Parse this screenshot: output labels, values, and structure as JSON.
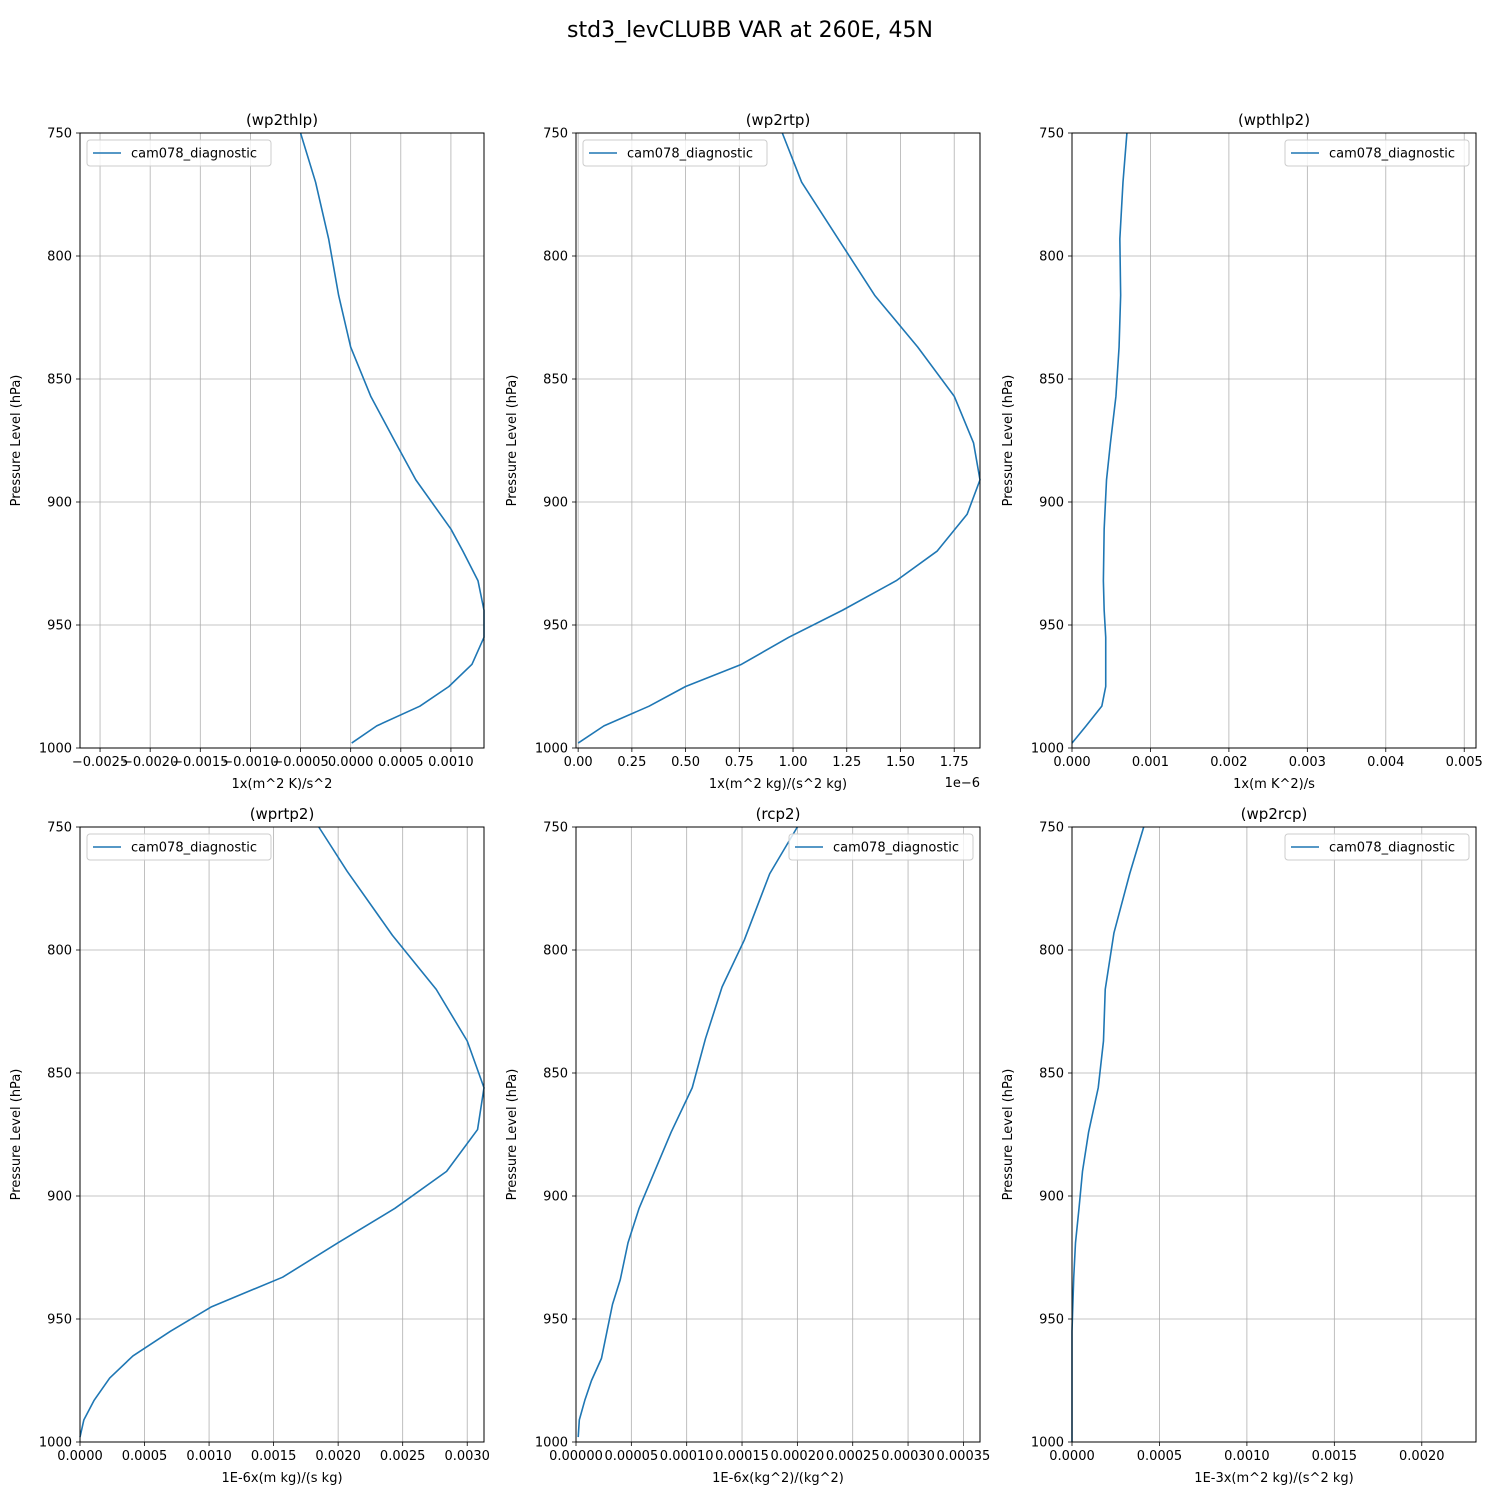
{
  "figure": {
    "title": "std3_levCLUBB VAR at 260E, 45N"
  },
  "chart_data": [
    {
      "type": "line",
      "title": "(wp2thlp)",
      "xlabel": "1x(m^2 K)/s^2",
      "ylabel": "Pressure Level (hPa)",
      "x_offset_text": "",
      "xlim": [
        -0.0027,
        0.00133
      ],
      "ylim": [
        1000,
        750
      ],
      "xticks": [
        -0.0025,
        -0.002,
        -0.0015,
        -0.001,
        -0.0005,
        0.0,
        0.0005,
        0.001
      ],
      "xtick_labels": [
        "−0.0025",
        "−0.0020",
        "−0.0015",
        "−0.0010",
        "−0.0005",
        "0.0000",
        "0.0005",
        "0.0010"
      ],
      "yticks": [
        750,
        800,
        850,
        900,
        950,
        1000
      ],
      "grid": true,
      "legend_loc": "upper left",
      "series": [
        {
          "name": "cam078_diagnostic",
          "color": "#1f77b4",
          "x": [
            -0.0005,
            -0.00035,
            -0.00022,
            -0.00012,
            0.0,
            0.0002,
            0.00045,
            0.00065,
            0.001,
            0.00112,
            0.00127,
            0.00133,
            0.00133,
            0.00121,
            0.00098,
            0.00069,
            0.00026,
            1e-05
          ],
          "y": [
            750,
            770,
            793,
            816,
            837,
            857,
            876,
            891,
            911,
            920,
            932,
            944,
            955,
            966,
            975,
            983,
            991,
            998
          ]
        }
      ]
    },
    {
      "type": "line",
      "title": "(wp2rtp)",
      "xlabel": "1x(m^2 kg)/(s^2 kg)",
      "ylabel": "Pressure Level (hPa)",
      "x_offset_text": "1e−6",
      "xlim": [
        -0.01,
        1.87
      ],
      "ylim": [
        1000,
        750
      ],
      "xticks": [
        0.0,
        0.25,
        0.5,
        0.75,
        1.0,
        1.25,
        1.5,
        1.75
      ],
      "xtick_labels": [
        "0.00",
        "0.25",
        "0.50",
        "0.75",
        "1.00",
        "1.25",
        "1.50",
        "1.75"
      ],
      "yticks": [
        750,
        800,
        850,
        900,
        950,
        1000
      ],
      "grid": true,
      "legend_loc": "upper left",
      "series": [
        {
          "name": "cam078_diagnostic",
          "color": "#1f77b4",
          "x": [
            0.95,
            1.04,
            1.21,
            1.38,
            1.58,
            1.75,
            1.84,
            1.87,
            1.81,
            1.67,
            1.48,
            1.23,
            0.98,
            0.76,
            0.5,
            0.33,
            0.12,
            0.0
          ],
          "y": [
            750,
            770,
            793,
            816,
            837,
            857,
            876,
            891,
            905,
            920,
            932,
            944,
            955,
            966,
            975,
            983,
            991,
            998
          ]
        }
      ]
    },
    {
      "type": "line",
      "title": "(wpthlp2)",
      "xlabel": "1x(m K^2)/s",
      "ylabel": "Pressure Level (hPa)",
      "x_offset_text": "",
      "xlim": [
        0.0,
        0.00515
      ],
      "ylim": [
        1000,
        750
      ],
      "xticks": [
        0.0,
        0.001,
        0.002,
        0.003,
        0.004,
        0.005
      ],
      "xtick_labels": [
        "0.000",
        "0.001",
        "0.002",
        "0.003",
        "0.004",
        "0.005"
      ],
      "yticks": [
        750,
        800,
        850,
        900,
        950,
        1000
      ],
      "grid": true,
      "legend_loc": "upper right",
      "series": [
        {
          "name": "cam078_diagnostic",
          "color": "#1f77b4",
          "x": [
            0.0007,
            0.00065,
            0.00061,
            0.00062,
            0.0006,
            0.00056,
            0.00049,
            0.00044,
            0.00041,
            0.0004,
            0.00041,
            0.00043,
            0.00043,
            0.00038,
            0.00018,
            0.0
          ],
          "y": [
            750,
            770,
            793,
            816,
            837,
            857,
            876,
            891,
            911,
            932,
            944,
            955,
            975,
            983,
            991,
            998
          ]
        }
      ]
    },
    {
      "type": "line",
      "title": "(wprtp2)",
      "xlabel": "1E-6x(m kg)/(s kg)",
      "ylabel": "Pressure Level (hPa)",
      "x_offset_text": "",
      "xlim": [
        0.0,
        0.00313
      ],
      "ylim": [
        1000,
        750
      ],
      "xticks": [
        0.0,
        0.0005,
        0.001,
        0.0015,
        0.002,
        0.0025,
        0.003
      ],
      "xtick_labels": [
        "0.0000",
        "0.0005",
        "0.0010",
        "0.0015",
        "0.0020",
        "0.0025",
        "0.0030"
      ],
      "yticks": [
        750,
        800,
        850,
        900,
        950,
        1000
      ],
      "grid": true,
      "legend_loc": "upper left",
      "series": [
        {
          "name": "cam078_diagnostic",
          "color": "#1f77b4",
          "x": [
            0.00185,
            0.00207,
            0.00242,
            0.00276,
            0.003,
            0.00313,
            0.00308,
            0.00284,
            0.00244,
            0.002,
            0.00157,
            0.00102,
            0.0007,
            0.00041,
            0.00023,
            0.00011,
            3e-05,
            0.0
          ],
          "y": [
            750,
            768,
            794,
            816,
            837,
            856,
            873,
            890,
            905,
            919,
            933,
            945,
            955,
            965,
            974,
            983,
            991,
            998
          ]
        }
      ]
    },
    {
      "type": "line",
      "title": "(rcp2)",
      "xlabel": "1E-6x(kg^2)/(kg^2)",
      "ylabel": "Pressure Level (hPa)",
      "x_offset_text": "",
      "xlim": [
        0.0,
        0.000365
      ],
      "ylim": [
        1000,
        750
      ],
      "xticks": [
        0.0,
        5e-05,
        0.0001,
        0.00015,
        0.0002,
        0.00025,
        0.0003,
        0.00035
      ],
      "xtick_labels": [
        "0.00000",
        "0.00005",
        "0.00010",
        "0.00015",
        "0.00020",
        "0.00025",
        "0.00030",
        "0.00035"
      ],
      "yticks": [
        750,
        800,
        850,
        900,
        950,
        1000
      ],
      "grid": true,
      "legend_loc": "upper right",
      "series": [
        {
          "name": "cam078_diagnostic",
          "color": "#1f77b4",
          "x": [
            0.0002,
            0.000175,
            0.000152,
            0.000132,
            0.000117,
            0.000105,
            8.6e-05,
            7.1e-05,
            5.7e-05,
            4.7e-05,
            4e-05,
            3.3e-05,
            2.8e-05,
            2.3e-05,
            1.4e-05,
            8e-06,
            3e-06,
            2e-06
          ],
          "y": [
            750,
            769,
            796,
            815,
            836,
            856,
            874,
            890,
            905,
            919,
            934,
            944,
            955,
            966,
            975,
            983,
            991,
            998
          ]
        }
      ]
    },
    {
      "type": "line",
      "title": "(wp2rcp)",
      "xlabel": "1E-3x(m^2 kg)/(s^2 kg)",
      "ylabel": "Pressure Level (hPa)",
      "x_offset_text": "",
      "xlim": [
        0.0,
        0.00231
      ],
      "ylim": [
        1000,
        750
      ],
      "xticks": [
        0.0,
        0.0005,
        0.001,
        0.0015,
        0.002
      ],
      "xtick_labels": [
        "0.0000",
        "0.0005",
        "0.0010",
        "0.0015",
        "0.0020"
      ],
      "yticks": [
        750,
        800,
        850,
        900,
        950,
        1000
      ],
      "grid": true,
      "legend_loc": "upper right",
      "series": [
        {
          "name": "cam078_diagnostic",
          "color": "#1f77b4",
          "x": [
            0.00041,
            0.00033,
            0.00024,
            0.00019,
            0.00018,
            0.00015,
            9.5e-05,
            6e-05,
            4e-05,
            2e-05,
            1e-05,
            5e-06,
            0.0,
            0.0,
            0.0,
            0.0,
            0.0
          ],
          "y": [
            750,
            769,
            793,
            816,
            837,
            856,
            874,
            890,
            905,
            919,
            933,
            944,
            955,
            966,
            975,
            983,
            1000
          ]
        }
      ]
    }
  ]
}
